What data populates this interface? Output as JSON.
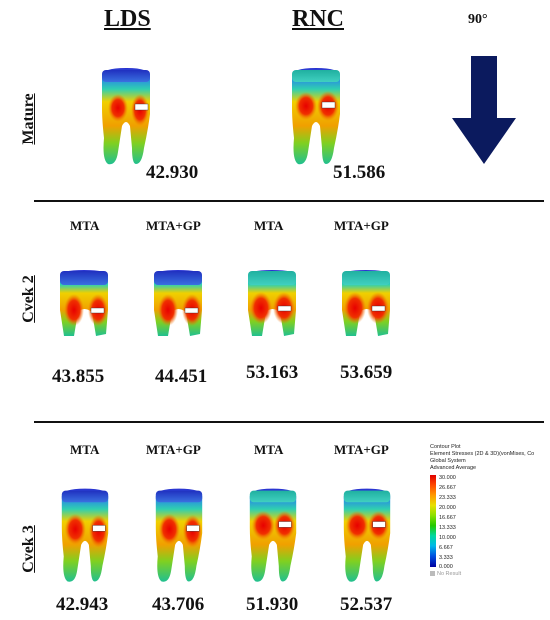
{
  "headers": {
    "lds": "LDS",
    "rnc": "RNC",
    "angle": "90°"
  },
  "rows": {
    "mature": {
      "label": "Mature",
      "values": {
        "lds": "42.930",
        "rnc": "51.586"
      }
    },
    "cvek2": {
      "label": "Cvek 2",
      "columns": [
        "MTA",
        "MTA+GP",
        "MTA",
        "MTA+GP"
      ],
      "values": [
        "43.855",
        "44.451",
        "53.163",
        "53.659"
      ]
    },
    "cvek3": {
      "label": "Cvek 3",
      "columns": [
        "MTA",
        "MTA+GP",
        "MTA",
        "MTA+GP"
      ],
      "values": [
        "42.943",
        "43.706",
        "51.930",
        "52.537"
      ]
    }
  },
  "legend": {
    "title": "Contour Plot",
    "line2": "Element Stresses (2D & 3D)(vonMises, Co",
    "line3": "Global System",
    "line4": "Advanced Average",
    "ticks": [
      "30.000",
      "26.667",
      "23.333",
      "20.000",
      "16.667",
      "13.333",
      "10.000",
      "6.667",
      "3.333",
      "0.000"
    ],
    "no_result": "No Result"
  },
  "colors": {
    "arrow": "#0b1a5e",
    "divider": "#111111"
  }
}
